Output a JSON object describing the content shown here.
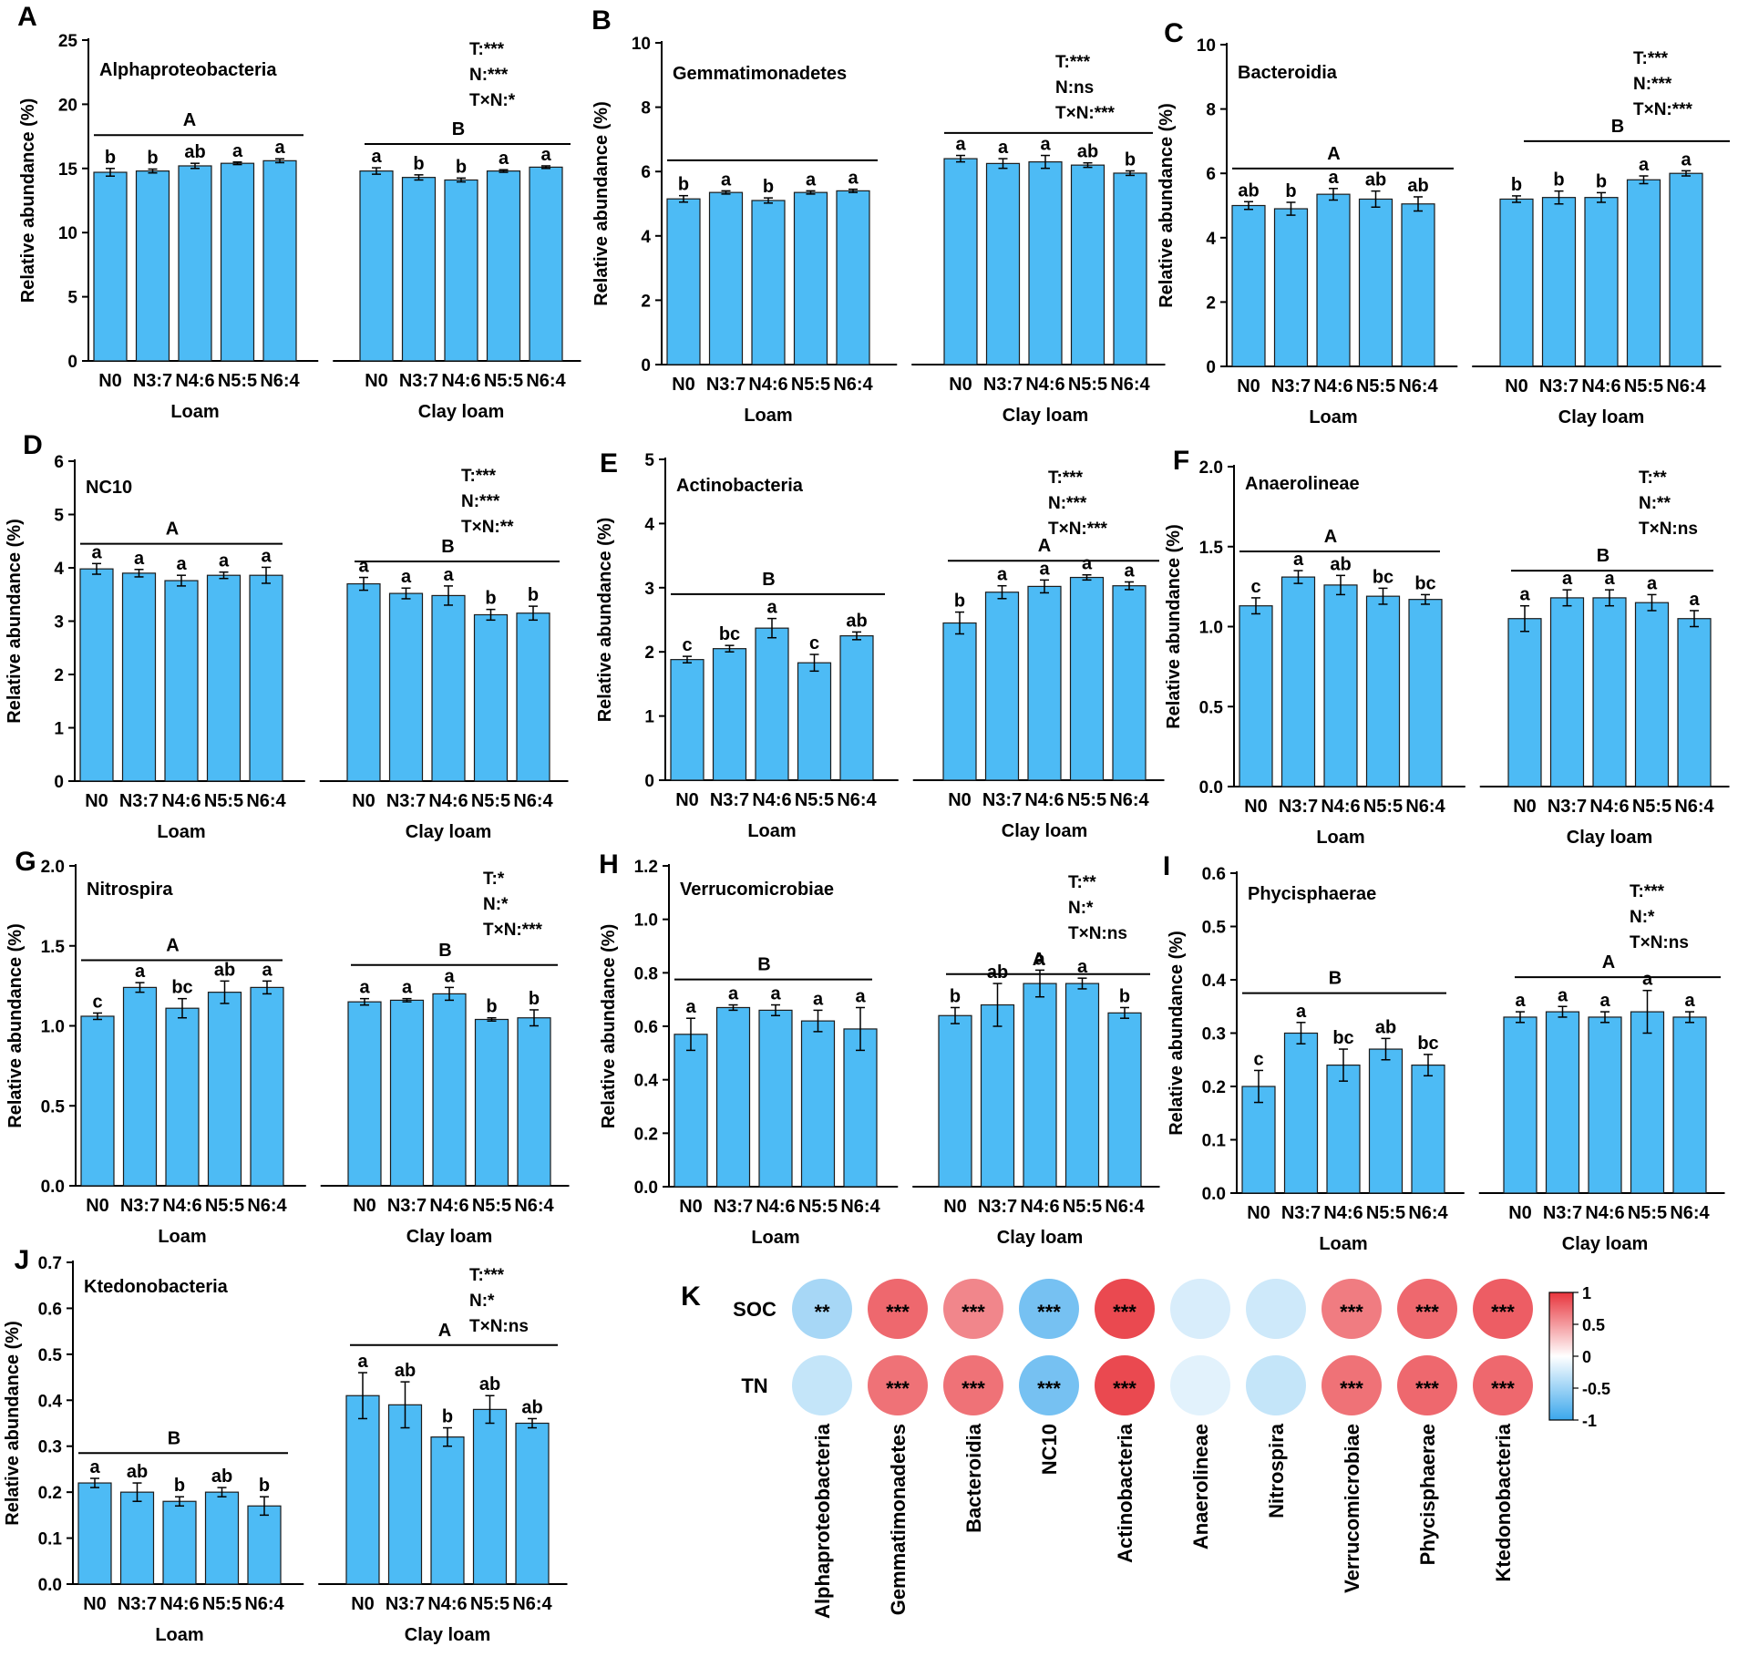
{
  "groups": [
    "Loam",
    "Clay loam"
  ],
  "treatments": [
    "N0",
    "N3:7",
    "N4:6",
    "N5:5",
    "N6:4"
  ],
  "ylabel": "Relative abundance (%)",
  "colors": {
    "bar": "#4DBBF5",
    "neg": "#3BA7EC",
    "pos": "#E8353D"
  },
  "chart_data": [
    {
      "panel": "A",
      "type": "bar",
      "title": "Alphaproteobacteria",
      "ylim": [
        0,
        25
      ],
      "yticks": [
        0,
        5,
        10,
        15,
        20,
        25
      ],
      "stats": [
        "T:***",
        "N:***",
        "T×N:*"
      ],
      "series": [
        {
          "name": "Loam",
          "values": [
            14.7,
            14.8,
            15.2,
            15.4,
            15.6
          ],
          "errors": [
            0.3,
            0.15,
            0.2,
            0.1,
            0.15
          ],
          "letters": [
            "b",
            "b",
            "ab",
            "a",
            "a"
          ],
          "group_letter": "A"
        },
        {
          "name": "Clay loam",
          "values": [
            14.8,
            14.3,
            14.1,
            14.8,
            15.1
          ],
          "errors": [
            0.25,
            0.2,
            0.15,
            0.1,
            0.1
          ],
          "letters": [
            "a",
            "b",
            "b",
            "a",
            "a"
          ],
          "group_letter": "B"
        }
      ]
    },
    {
      "panel": "B",
      "type": "bar",
      "title": "Gemmatimonadetes",
      "ylim": [
        0,
        10
      ],
      "yticks": [
        0,
        2,
        4,
        6,
        8,
        10
      ],
      "stats": [
        "T:***",
        "N:ns",
        "T×N:***"
      ],
      "series": [
        {
          "name": "Loam",
          "values": [
            5.15,
            5.35,
            5.1,
            5.35,
            5.4
          ],
          "errors": [
            0.1,
            0.05,
            0.08,
            0.05,
            0.05
          ],
          "letters": [
            "b",
            "a",
            "b",
            "a",
            "a"
          ],
          "group_letter": ""
        },
        {
          "name": "Clay loam",
          "values": [
            6.4,
            6.25,
            6.3,
            6.2,
            5.95
          ],
          "errors": [
            0.1,
            0.15,
            0.2,
            0.07,
            0.07
          ],
          "letters": [
            "a",
            "a",
            "a",
            "ab",
            "b"
          ],
          "group_letter": ""
        }
      ]
    },
    {
      "panel": "C",
      "type": "bar",
      "title": "Bacteroidia",
      "ylim": [
        0,
        10
      ],
      "yticks": [
        0,
        2,
        4,
        6,
        8,
        10
      ],
      "stats": [
        "T:***",
        "N:***",
        "T×N:***"
      ],
      "series": [
        {
          "name": "Loam",
          "values": [
            5.0,
            4.9,
            5.35,
            5.2,
            5.05
          ],
          "errors": [
            0.12,
            0.2,
            0.18,
            0.25,
            0.22
          ],
          "letters": [
            "ab",
            "b",
            "a",
            "ab",
            "ab"
          ],
          "group_letter": "A"
        },
        {
          "name": "Clay loam",
          "values": [
            5.2,
            5.25,
            5.25,
            5.8,
            6.0
          ],
          "errors": [
            0.1,
            0.2,
            0.15,
            0.12,
            0.08
          ],
          "letters": [
            "b",
            "b",
            "b",
            "a",
            "a"
          ],
          "group_letter": "B"
        }
      ]
    },
    {
      "panel": "D",
      "type": "bar",
      "title": "NC10",
      "ylim": [
        0,
        6
      ],
      "yticks": [
        0,
        1,
        2,
        3,
        4,
        5,
        6
      ],
      "stats": [
        "T:***",
        "N:***",
        "T×N:**"
      ],
      "series": [
        {
          "name": "Loam",
          "values": [
            3.98,
            3.9,
            3.76,
            3.86,
            3.86
          ],
          "errors": [
            0.1,
            0.07,
            0.1,
            0.06,
            0.15
          ],
          "letters": [
            "a",
            "a",
            "a",
            "a",
            "a"
          ],
          "group_letter": "A"
        },
        {
          "name": "Clay loam",
          "values": [
            3.7,
            3.52,
            3.48,
            3.12,
            3.15
          ],
          "errors": [
            0.12,
            0.1,
            0.18,
            0.1,
            0.13
          ],
          "letters": [
            "a",
            "a",
            "a",
            "b",
            "b"
          ],
          "group_letter": "B"
        }
      ]
    },
    {
      "panel": "E",
      "type": "bar",
      "title": "Actinobacteria",
      "ylim": [
        0,
        5
      ],
      "yticks": [
        0,
        1,
        2,
        3,
        4,
        5
      ],
      "stats": [
        "T:***",
        "N:***",
        "T×N:***"
      ],
      "series": [
        {
          "name": "Loam",
          "values": [
            1.88,
            2.05,
            2.37,
            1.83,
            2.25
          ],
          "errors": [
            0.05,
            0.05,
            0.15,
            0.13,
            0.06
          ],
          "letters": [
            "c",
            "bc",
            "a",
            "c",
            "ab"
          ],
          "group_letter": "B"
        },
        {
          "name": "Clay loam",
          "values": [
            2.45,
            2.93,
            3.02,
            3.16,
            3.03
          ],
          "errors": [
            0.17,
            0.1,
            0.1,
            0.04,
            0.06
          ],
          "letters": [
            "b",
            "a",
            "a",
            "a",
            "a"
          ],
          "group_letter": "A"
        }
      ]
    },
    {
      "panel": "F",
      "type": "bar",
      "title": "Anaerolineae",
      "ylim": [
        0,
        2.0
      ],
      "yticks": [
        0.0,
        0.5,
        1.0,
        1.5,
        2.0
      ],
      "stats": [
        "T:**",
        "N:**",
        "T×N:ns"
      ],
      "series": [
        {
          "name": "Loam",
          "values": [
            1.13,
            1.31,
            1.26,
            1.19,
            1.17
          ],
          "errors": [
            0.05,
            0.04,
            0.06,
            0.05,
            0.03
          ],
          "letters": [
            "c",
            "a",
            "ab",
            "bc",
            "bc"
          ],
          "group_letter": "A"
        },
        {
          "name": "Clay loam",
          "values": [
            1.05,
            1.18,
            1.18,
            1.15,
            1.05
          ],
          "errors": [
            0.08,
            0.05,
            0.05,
            0.05,
            0.05
          ],
          "letters": [
            "a",
            "a",
            "a",
            "a",
            "a"
          ],
          "group_letter": "B"
        }
      ]
    },
    {
      "panel": "G",
      "type": "bar",
      "title": "Nitrospira",
      "ylim": [
        0,
        2.0
      ],
      "yticks": [
        0.0,
        0.5,
        1.0,
        1.5,
        2.0
      ],
      "stats": [
        "T:*",
        "N:*",
        "T×N:***"
      ],
      "series": [
        {
          "name": "Loam",
          "values": [
            1.06,
            1.24,
            1.11,
            1.21,
            1.24
          ],
          "errors": [
            0.02,
            0.03,
            0.06,
            0.07,
            0.04
          ],
          "letters": [
            "c",
            "a",
            "bc",
            "ab",
            "a"
          ],
          "group_letter": "A"
        },
        {
          "name": "Clay loam",
          "values": [
            1.15,
            1.16,
            1.2,
            1.04,
            1.05
          ],
          "errors": [
            0.02,
            0.01,
            0.04,
            0.01,
            0.05
          ],
          "letters": [
            "a",
            "a",
            "a",
            "b",
            "b"
          ],
          "group_letter": "B"
        }
      ]
    },
    {
      "panel": "H",
      "type": "bar",
      "title": "Verrucomicrobiae",
      "ylim": [
        0,
        1.2
      ],
      "yticks": [
        0.0,
        0.2,
        0.4,
        0.6,
        0.8,
        1.0,
        1.2
      ],
      "stats": [
        "T:**",
        "N:*",
        "T×N:ns"
      ],
      "series": [
        {
          "name": "Loam",
          "values": [
            0.57,
            0.67,
            0.66,
            0.62,
            0.59
          ],
          "errors": [
            0.06,
            0.01,
            0.02,
            0.04,
            0.08
          ],
          "letters": [
            "a",
            "a",
            "a",
            "a",
            "a"
          ],
          "group_letter": "B"
        },
        {
          "name": "Clay loam",
          "values": [
            0.64,
            0.68,
            0.76,
            0.76,
            0.65
          ],
          "errors": [
            0.03,
            0.08,
            0.05,
            0.02,
            0.02
          ],
          "letters": [
            "b",
            "ab",
            "a",
            "a",
            "b"
          ],
          "group_letter": "A"
        }
      ]
    },
    {
      "panel": "I",
      "type": "bar",
      "title": "Phycisphaerae",
      "ylim": [
        0,
        0.6
      ],
      "yticks": [
        0.0,
        0.1,
        0.2,
        0.3,
        0.4,
        0.5,
        0.6
      ],
      "stats": [
        "T:***",
        "N:*",
        "T×N:ns"
      ],
      "series": [
        {
          "name": "Loam",
          "values": [
            0.2,
            0.3,
            0.24,
            0.27,
            0.24
          ],
          "errors": [
            0.03,
            0.02,
            0.03,
            0.02,
            0.02
          ],
          "letters": [
            "c",
            "a",
            "bc",
            "ab",
            "bc"
          ],
          "group_letter": "B"
        },
        {
          "name": "Clay loam",
          "values": [
            0.33,
            0.34,
            0.33,
            0.34,
            0.33
          ],
          "errors": [
            0.01,
            0.01,
            0.01,
            0.04,
            0.01
          ],
          "letters": [
            "a",
            "a",
            "a",
            "a",
            "a"
          ],
          "group_letter": "A"
        }
      ]
    },
    {
      "panel": "J",
      "type": "bar",
      "title": "Ktedonobacteria",
      "ylim": [
        0,
        0.7
      ],
      "yticks": [
        0.0,
        0.1,
        0.2,
        0.3,
        0.4,
        0.5,
        0.6,
        0.7
      ],
      "stats": [
        "T:***",
        "N:*",
        "T×N:ns"
      ],
      "series": [
        {
          "name": "Loam",
          "values": [
            0.22,
            0.2,
            0.18,
            0.2,
            0.17
          ],
          "errors": [
            0.01,
            0.02,
            0.01,
            0.01,
            0.02
          ],
          "letters": [
            "a",
            "ab",
            "b",
            "ab",
            "b"
          ],
          "group_letter": "B"
        },
        {
          "name": "Clay loam",
          "values": [
            0.41,
            0.39,
            0.32,
            0.38,
            0.35
          ],
          "errors": [
            0.05,
            0.05,
            0.02,
            0.03,
            0.01
          ],
          "letters": [
            "a",
            "ab",
            "b",
            "ab",
            "ab"
          ],
          "group_letter": "A"
        }
      ]
    },
    {
      "panel": "K",
      "type": "heatmap",
      "rows": [
        "SOC",
        "TN"
      ],
      "columns": [
        "Alphaproteobacteria",
        "Gemmatimonadetes",
        "Bacteroidia",
        "NC10",
        "Actinobacteria",
        "Anaerolineae",
        "Nitrospira",
        "Verrucomicrobiae",
        "Phycisphaerae",
        "Ktedonobacteria"
      ],
      "values": [
        [
          -0.45,
          0.75,
          0.6,
          -0.7,
          0.9,
          -0.2,
          -0.25,
          0.65,
          0.75,
          0.8
        ],
        [
          -0.3,
          0.7,
          0.7,
          -0.7,
          0.9,
          -0.15,
          -0.3,
          0.7,
          0.75,
          0.75
        ]
      ],
      "significance": [
        [
          "**",
          "***",
          "***",
          "***",
          "***",
          "",
          "",
          "***",
          "***",
          "***"
        ],
        [
          "",
          "***",
          "***",
          "***",
          "***",
          "",
          "",
          "***",
          "***",
          "***"
        ]
      ],
      "range": [
        -1,
        1
      ],
      "colorbar_ticks": [
        "1",
        "0.5",
        "0",
        "-0.5",
        "-1"
      ],
      "colorbar_values": [
        1,
        0.5,
        0,
        -0.5,
        -1
      ]
    }
  ]
}
